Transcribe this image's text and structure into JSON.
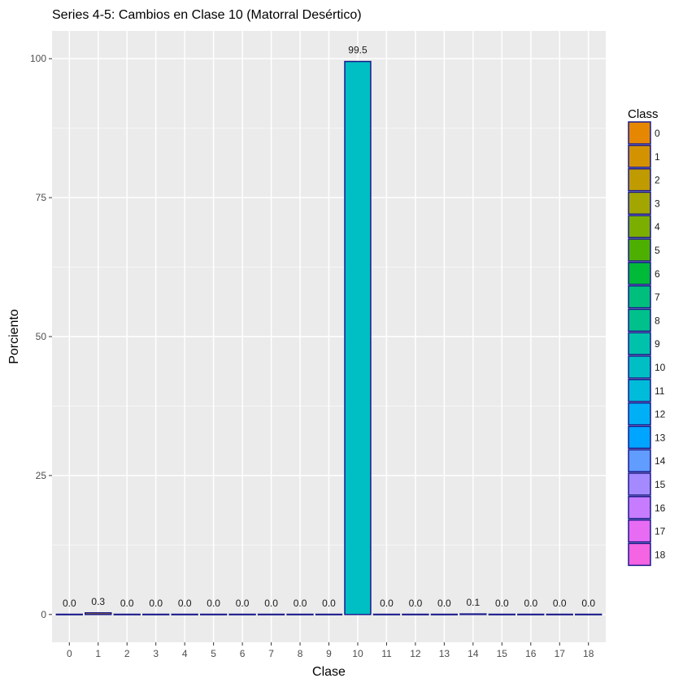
{
  "chart_data": {
    "type": "bar",
    "title": "Series 4-5: Cambios en Clase 10 (Matorral Desértico)",
    "xlabel": "Clase",
    "ylabel": "Porciento",
    "categories": [
      "0",
      "1",
      "2",
      "3",
      "4",
      "5",
      "6",
      "7",
      "8",
      "9",
      "10",
      "11",
      "12",
      "13",
      "14",
      "15",
      "16",
      "17",
      "18"
    ],
    "values": [
      0.0,
      0.3,
      0.0,
      0.0,
      0.0,
      0.0,
      0.0,
      0.0,
      0.0,
      0.0,
      99.5,
      0.0,
      0.0,
      0.0,
      0.1,
      0.0,
      0.0,
      0.0,
      0.0
    ],
    "value_labels": [
      "0.0",
      "0.3",
      "0.0",
      "0.0",
      "0.0",
      "0.0",
      "0.0",
      "0.0",
      "0.0",
      "0.0",
      "99.5",
      "0.0",
      "0.0",
      "0.0",
      "0.1",
      "0.0",
      "0.0",
      "0.0",
      "0.0"
    ],
    "ylim": [
      -5,
      105
    ],
    "yticks": [
      0,
      25,
      50,
      75,
      100
    ],
    "grid": true,
    "legend": {
      "title": "Class",
      "placement": "right",
      "entries": [
        "0",
        "1",
        "2",
        "3",
        "4",
        "5",
        "6",
        "7",
        "8",
        "9",
        "10",
        "11",
        "12",
        "13",
        "14",
        "15",
        "16",
        "17",
        "18"
      ]
    },
    "colors": [
      "#E58700",
      "#D39200",
      "#C09B00",
      "#A3A500",
      "#7CAE00",
      "#4DB000",
      "#00BA38",
      "#00BF7D",
      "#00C08B",
      "#00C1AA",
      "#00BFC4",
      "#00BBDA",
      "#00B0F6",
      "#00A5FF",
      "#619CFF",
      "#A58AFF",
      "#C77CFF",
      "#E76BF3",
      "#F564E3"
    ],
    "bar_outline_color": "#1a1a8c",
    "panel_background": "#EBEBEB"
  }
}
